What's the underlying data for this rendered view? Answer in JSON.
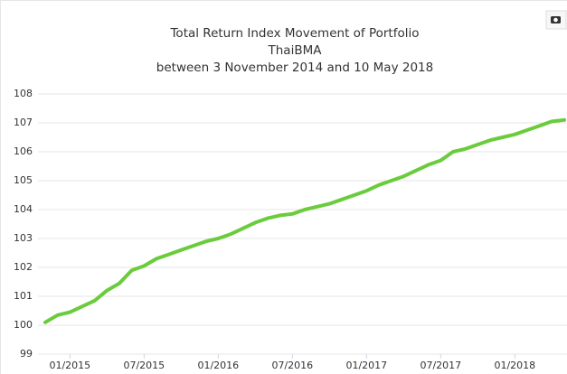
{
  "chart_data": {
    "type": "line",
    "title": "Total Return Index Movement of Portfolio",
    "subtitle": "ThaiBMA",
    "period": "between 3 November 2014 and 10 May 2018",
    "x": [
      "2014-11",
      "2014-12",
      "2015-01",
      "2015-02",
      "2015-03",
      "2015-04",
      "2015-05",
      "2015-06",
      "2015-07",
      "2015-08",
      "2015-09",
      "2015-10",
      "2015-11",
      "2015-12",
      "2016-01",
      "2016-02",
      "2016-03",
      "2016-04",
      "2016-05",
      "2016-06",
      "2016-07",
      "2016-08",
      "2016-09",
      "2016-10",
      "2016-11",
      "2016-12",
      "2017-01",
      "2017-02",
      "2017-03",
      "2017-04",
      "2017-05",
      "2017-06",
      "2017-07",
      "2017-08",
      "2017-09",
      "2017-10",
      "2017-11",
      "2017-12",
      "2018-01",
      "2018-02",
      "2018-03",
      "2018-04",
      "2018-05"
    ],
    "series": [
      {
        "color": "#6acc3c",
        "values": [
          100.1,
          100.35,
          100.45,
          100.65,
          100.85,
          101.2,
          101.45,
          101.9,
          102.05,
          102.3,
          102.45,
          102.6,
          102.75,
          102.9,
          103.0,
          103.15,
          103.35,
          103.55,
          103.7,
          103.8,
          103.85,
          104.0,
          104.1,
          104.2,
          104.35,
          104.5,
          104.65,
          104.85,
          105.0,
          105.15,
          105.35,
          105.55,
          105.7,
          106.0,
          106.1,
          106.25,
          106.4,
          106.5,
          106.6,
          106.75,
          106.9,
          107.05,
          107.1
        ]
      }
    ],
    "xlim": [
      "2014-11",
      "2018-05"
    ],
    "xticks": [
      {
        "value": "2015-01",
        "label": "01/2015"
      },
      {
        "value": "2015-07",
        "label": "07/2015"
      },
      {
        "value": "2016-01",
        "label": "01/2016"
      },
      {
        "value": "2016-07",
        "label": "07/2016"
      },
      {
        "value": "2017-01",
        "label": "01/2017"
      },
      {
        "value": "2017-07",
        "label": "07/2017"
      },
      {
        "value": "2018-01",
        "label": "01/2018"
      }
    ],
    "ylim": [
      99,
      108
    ],
    "yticks": [
      99,
      100,
      101,
      102,
      103,
      104,
      105,
      106,
      107,
      108
    ],
    "grid": true
  }
}
